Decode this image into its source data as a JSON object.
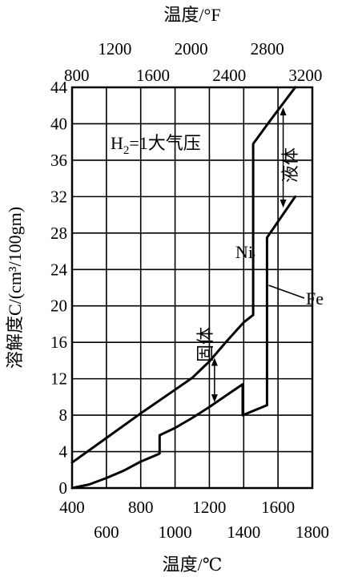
{
  "chart_data": {
    "type": "line",
    "xlabel": "温度/℃",
    "x2label": "温度/°F",
    "ylabel": "溶解度C/(cm³/100gm)",
    "xlim": [
      400,
      1800
    ],
    "ylim": [
      0,
      44
    ],
    "x2lim": [
      752,
      3272
    ],
    "yticks": [
      0,
      4,
      8,
      12,
      16,
      20,
      24,
      28,
      32,
      36,
      40,
      44
    ],
    "xticks_row1": [
      400,
      800,
      1200,
      1600
    ],
    "xticks_row2": [
      600,
      1000,
      1400,
      1800
    ],
    "x2ticks_row1": [
      1200,
      2000,
      2800
    ],
    "x2ticks_row2": [
      800,
      1600,
      2400,
      3200
    ],
    "grid": true,
    "series": [
      {
        "name": "Ni",
        "x": [
          400,
          600,
          800,
          1000,
          1100,
          1200,
          1300,
          1400,
          1455,
          1455,
          1560,
          1700
        ],
        "y": [
          2.8,
          5.5,
          8.2,
          10.8,
          12.1,
          13.9,
          16.1,
          18.2,
          19.0,
          37.8,
          40.5,
          44
        ]
      },
      {
        "name": "Fe",
        "x": [
          400,
          500,
          600,
          700,
          800,
          900,
          910,
          910,
          1000,
          1100,
          1200,
          1300,
          1394,
          1394,
          1536,
          1536,
          1700
        ],
        "y": [
          0,
          0.4,
          1.1,
          1.9,
          2.9,
          3.7,
          3.8,
          5.8,
          6.6,
          7.7,
          8.9,
          10.2,
          11.4,
          8.0,
          9.1,
          27.5,
          32
        ]
      }
    ],
    "annotations": {
      "condition": "H",
      "condition_sub": "2",
      "condition_rest": "=1大气压",
      "solid": "固体",
      "liquid": "液体",
      "ni": "Ni",
      "fe": "Fe"
    }
  }
}
